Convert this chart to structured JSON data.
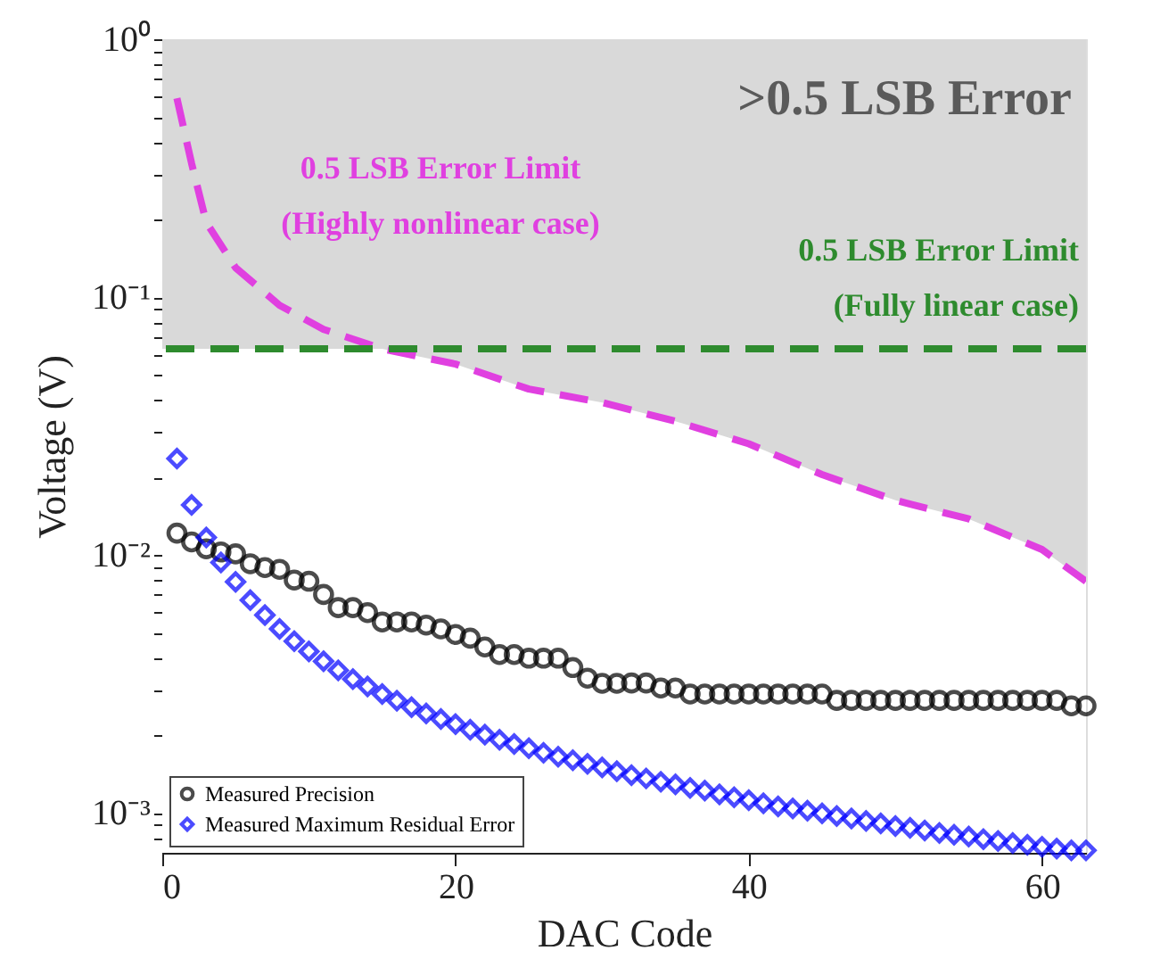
{
  "chart_data": {
    "type": "scatter",
    "xlabel": "DAC Code",
    "ylabel": "Voltage (V)",
    "log": "y",
    "xlim": [
      0,
      63
    ],
    "ylim": [
      0.0007,
      1
    ],
    "xticks": [
      0,
      20,
      40,
      60
    ],
    "yticks": [
      {
        "value": 0.0008,
        "label": null
      },
      {
        "value": 0.0009,
        "label": null
      },
      {
        "value": 0.001,
        "label": "10⁻³"
      },
      {
        "value": 0.002,
        "label": null
      },
      {
        "value": 0.003,
        "label": null
      },
      {
        "value": 0.004,
        "label": null
      },
      {
        "value": 0.005,
        "label": null
      },
      {
        "value": 0.006,
        "label": null
      },
      {
        "value": 0.007,
        "label": null
      },
      {
        "value": 0.008,
        "label": null
      },
      {
        "value": 0.009,
        "label": null
      },
      {
        "value": 0.01,
        "label": "10⁻²"
      },
      {
        "value": 0.02,
        "label": null
      },
      {
        "value": 0.03,
        "label": null
      },
      {
        "value": 0.04,
        "label": null
      },
      {
        "value": 0.05,
        "label": null
      },
      {
        "value": 0.06,
        "label": null
      },
      {
        "value": 0.07,
        "label": null
      },
      {
        "value": 0.08,
        "label": null
      },
      {
        "value": 0.09,
        "label": null
      },
      {
        "value": 0.1,
        "label": "10⁻¹"
      },
      {
        "value": 0.2,
        "label": null
      },
      {
        "value": 0.3,
        "label": null
      },
      {
        "value": 0.4,
        "label": null
      },
      {
        "value": 0.5,
        "label": null
      },
      {
        "value": 0.6,
        "label": null
      },
      {
        "value": 0.7,
        "label": null
      },
      {
        "value": 0.8,
        "label": null
      },
      {
        "value": 0.9,
        "label": null
      },
      {
        "value": 1,
        "label": "10⁰"
      }
    ],
    "legend": "bottom left",
    "series": [
      {
        "type": "area",
        "color": "#ffffff",
        "x": [
          0,
          15,
          20,
          25,
          30,
          35,
          40,
          45,
          50,
          55,
          60,
          63
        ],
        "values": [
          0.063,
          0.063,
          0.055,
          0.044,
          0.039,
          0.033,
          0.027,
          0.0205,
          0.0163,
          0.0138,
          0.0105,
          0.0079
        ]
      },
      {
        "type": "line",
        "name": "0.5 LSB Error Limit\n(Highly nonlinear case)",
        "color": "#e040e0",
        "line_style": "dashed",
        "marker": "none",
        "x": [
          1,
          2,
          3,
          5,
          8,
          11,
          15,
          20,
          25,
          30,
          35,
          40,
          45,
          50,
          55,
          60,
          63
        ],
        "values": [
          0.59,
          0.33,
          0.195,
          0.13,
          0.093,
          0.075,
          0.063,
          0.055,
          0.044,
          0.039,
          0.033,
          0.027,
          0.0205,
          0.0163,
          0.0138,
          0.0105,
          0.0079
        ]
      },
      {
        "name": "Measured Precision",
        "color": "#000000",
        "marker": "circle",
        "x": [
          1,
          2,
          3,
          4,
          5,
          6,
          7,
          8,
          9,
          10,
          11,
          12,
          13,
          14,
          15,
          16,
          17,
          18,
          19,
          20,
          21,
          22,
          23,
          24,
          25,
          26,
          27,
          28,
          29,
          30,
          31,
          32,
          33,
          34,
          35,
          36,
          37,
          38,
          39,
          40,
          41,
          42,
          43,
          44,
          45,
          46,
          47,
          48,
          49,
          50,
          51,
          52,
          53,
          54,
          55,
          56,
          57,
          58,
          59,
          60,
          61,
          62,
          63
        ],
        "values": [
          0.01216,
          0.01124,
          0.01057,
          0.01028,
          0.0101,
          0.00925,
          0.00894,
          0.0088,
          0.008,
          0.00791,
          0.00703,
          0.00625,
          0.00625,
          0.00598,
          0.0055,
          0.0055,
          0.0055,
          0.00535,
          0.00517,
          0.00492,
          0.00476,
          0.0044,
          0.00411,
          0.00411,
          0.00398,
          0.00398,
          0.00398,
          0.00366,
          0.00333,
          0.00318,
          0.00318,
          0.00319,
          0.00319,
          0.00305,
          0.00305,
          0.00289,
          0.00289,
          0.00289,
          0.00289,
          0.00289,
          0.00289,
          0.00289,
          0.00289,
          0.00289,
          0.00289,
          0.00273,
          0.00273,
          0.00273,
          0.00273,
          0.00273,
          0.00273,
          0.00273,
          0.00273,
          0.00273,
          0.00273,
          0.00273,
          0.00273,
          0.00273,
          0.00273,
          0.00273,
          0.00273,
          0.0026,
          0.0026
        ]
      },
      {
        "name": "Measured Maximum Residual Error",
        "color": "#0000ff",
        "marker": "diamond",
        "x": [
          1,
          2,
          3,
          4,
          5,
          6,
          7,
          8,
          9,
          10,
          11,
          12,
          13,
          14,
          15,
          16,
          17,
          18,
          19,
          20,
          21,
          22,
          23,
          24,
          25,
          26,
          27,
          28,
          29,
          30,
          31,
          32,
          33,
          34,
          35,
          36,
          37,
          38,
          39,
          40,
          41,
          42,
          43,
          44,
          45,
          46,
          47,
          48,
          49,
          50,
          51,
          52,
          53,
          54,
          55,
          56,
          57,
          58,
          59,
          60,
          61,
          62,
          63
        ],
        "values": [
          0.02366,
          0.01563,
          0.01169,
          0.00935,
          0.00787,
          0.00668,
          0.00585,
          0.00517,
          0.00463,
          0.00423,
          0.00387,
          0.00357,
          0.0033,
          0.00309,
          0.00289,
          0.00272,
          0.00257,
          0.00243,
          0.00231,
          0.00221,
          0.0021,
          0.00201,
          0.00192,
          0.00185,
          0.00178,
          0.00171,
          0.00165,
          0.0016,
          0.00155,
          0.0015,
          0.00145,
          0.0014,
          0.00136,
          0.00132,
          0.00129,
          0.00125,
          0.00122,
          0.00118,
          0.00115,
          0.00112,
          0.00109,
          0.00106,
          0.00104,
          0.00102,
          0.000995,
          0.000973,
          0.000951,
          0.00093,
          0.00091,
          0.000889,
          0.000875,
          0.000855,
          0.000836,
          0.000822,
          0.000809,
          0.000791,
          0.000778,
          0.000764,
          0.000752,
          0.000739,
          0.000727,
          0.000715,
          0.000715
        ]
      }
    ],
    "bands": [
      {
        "axis": "y",
        "from": 0.0007,
        "to": 1,
        "color": "#d9d9d9",
        "label": ">0.5 LSB Error"
      }
    ],
    "ref_lines": [
      {
        "axis": "y",
        "value": 0.063,
        "label": "0.5 LSB Error Limit\n(Fully linear case)",
        "color": "#2e8b2e",
        "line_style": "dashed"
      }
    ]
  }
}
